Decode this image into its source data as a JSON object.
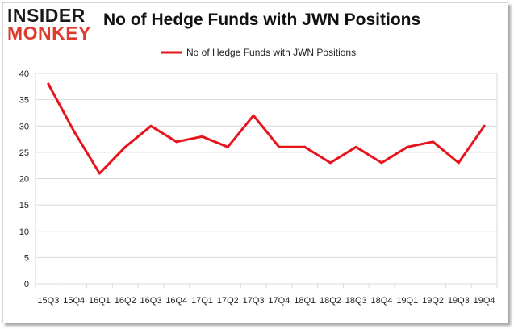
{
  "logo": {
    "line1": "INSIDER",
    "line2": "MONKEY"
  },
  "colors": {
    "series": "#e8141d",
    "grid": "#d9d9d9",
    "logo_accent": "#e03a2f"
  },
  "chart_data": {
    "type": "line",
    "title": "No of Hedge Funds with JWN Positions",
    "xlabel": "",
    "ylabel": "",
    "categories": [
      "15Q3",
      "15Q4",
      "16Q1",
      "16Q2",
      "16Q3",
      "16Q4",
      "17Q1",
      "17Q2",
      "17Q3",
      "17Q4",
      "18Q1",
      "18Q2",
      "18Q3",
      "18Q4",
      "19Q1",
      "19Q2",
      "19Q3",
      "19Q4"
    ],
    "series": [
      {
        "name": "No of Hedge Funds with JWN Positions",
        "values": [
          38,
          29,
          21,
          26,
          30,
          27,
          28,
          26,
          32,
          26,
          26,
          23,
          26,
          23,
          26,
          27,
          23,
          30
        ]
      }
    ],
    "ylim": [
      0,
      40
    ],
    "yticks": [
      0,
      5,
      10,
      15,
      20,
      25,
      30,
      35,
      40
    ],
    "grid": "horizontal",
    "legend": "top-center"
  }
}
